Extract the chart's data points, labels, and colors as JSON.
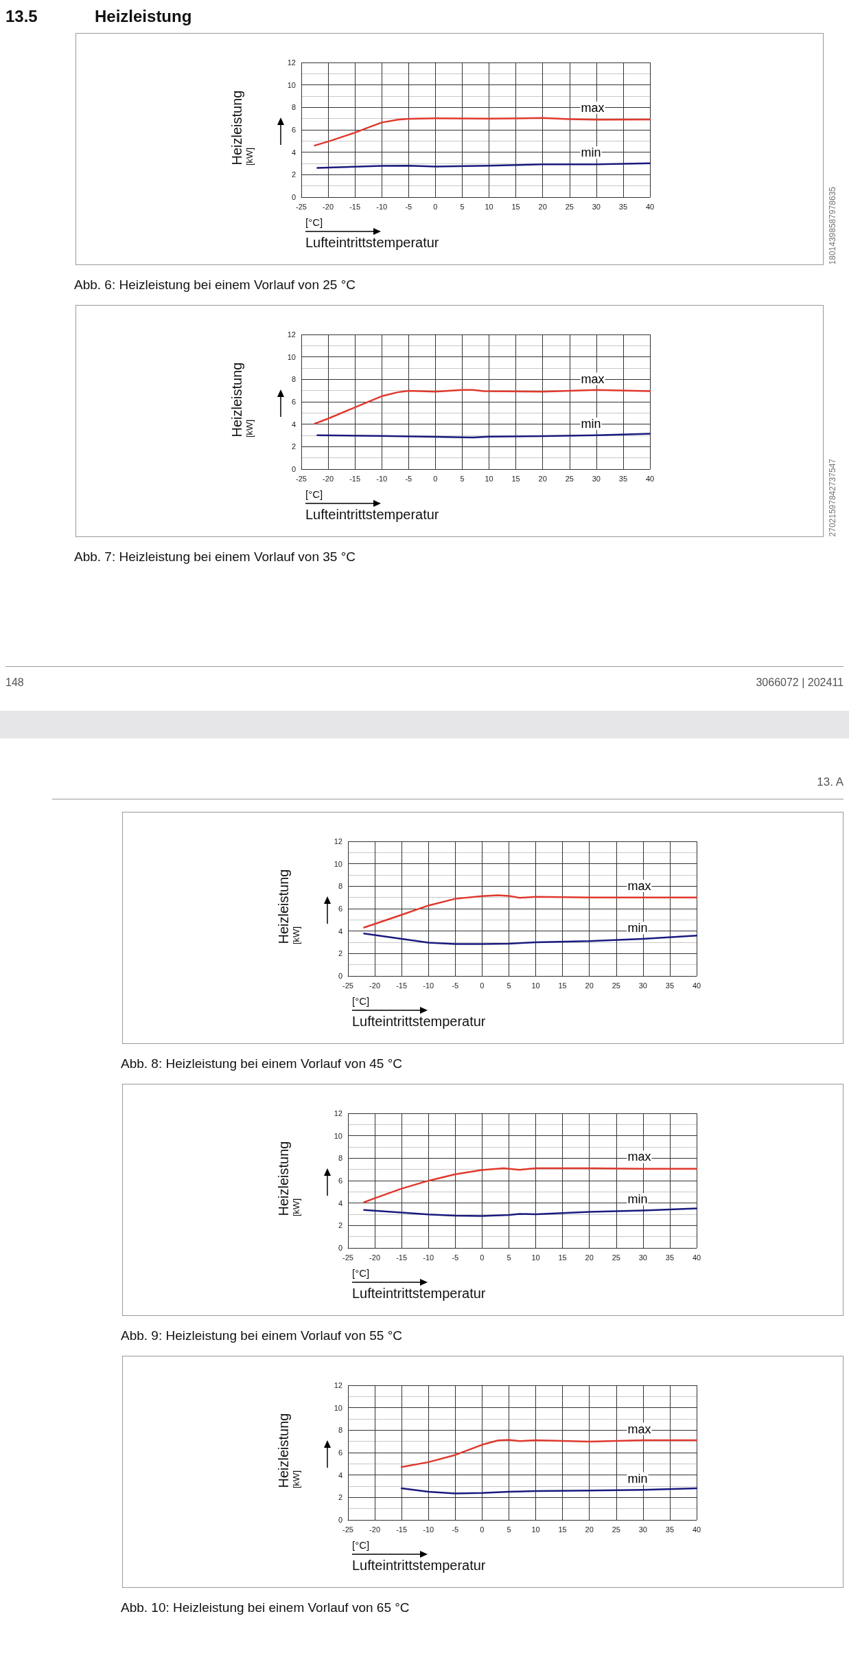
{
  "chart_data": [
    {
      "type": "line",
      "title": "13.5 Heizleistung",
      "xlabel": "[°C]\nLufteintrittstemperatur",
      "ylabel": "Heizleistung\n[kW]",
      "xlim": [
        -25,
        40
      ],
      "xticks": [
        -25,
        -20,
        -15,
        -10,
        -5,
        0,
        5,
        10,
        15,
        20,
        25,
        30,
        35,
        40
      ],
      "ylim": [
        0,
        12
      ],
      "yticks": [
        0,
        2,
        4,
        6,
        8,
        10,
        12
      ],
      "grid": true,
      "legend": false,
      "marker": "none",
      "line_style": "solid",
      "annotations": [
        "Abb. 6: Heizleistung bei einem Vorlauf von 25 °C",
        "18014398587978635"
      ],
      "series": [
        {
          "name": "max",
          "color": "#e0392e",
          "x": [
            -22.5,
            -20,
            -15,
            -12,
            -10,
            -7,
            -5,
            0,
            10,
            20,
            25,
            30,
            40
          ],
          "values": [
            4.6,
            4.95,
            5.75,
            6.3,
            6.65,
            6.9,
            6.98,
            7.02,
            7.0,
            7.05,
            6.95,
            6.9,
            6.92
          ]
        },
        {
          "name": "min",
          "color": "#1a1a7e",
          "x": [
            -22,
            -10,
            -5,
            0,
            10,
            20,
            30,
            40
          ],
          "values": [
            2.6,
            2.78,
            2.8,
            2.73,
            2.8,
            2.92,
            2.92,
            3.02
          ]
        }
      ]
    },
    {
      "type": "line",
      "xlabel": "[°C]\nLufteintrittstemperatur",
      "ylabel": "Heizleistung\n[kW]",
      "xlim": [
        -25,
        40
      ],
      "xticks": [
        -25,
        -20,
        -15,
        -10,
        -5,
        0,
        5,
        10,
        15,
        20,
        25,
        30,
        35,
        40
      ],
      "ylim": [
        0,
        12
      ],
      "yticks": [
        0,
        2,
        4,
        6,
        8,
        10,
        12
      ],
      "grid": true,
      "legend": false,
      "marker": "none",
      "line_style": "solid",
      "annotations": [
        "Abb. 7: Heizleistung bei einem Vorlauf von 35 °C",
        "27021597842737547",
        "148",
        "3066072 | 202411",
        "13. A"
      ],
      "series": [
        {
          "name": "max",
          "color": "#e0392e",
          "x": [
            -22.5,
            -20,
            -15,
            -10,
            -7,
            -5,
            0,
            5,
            7,
            9,
            20,
            25,
            30,
            40
          ],
          "values": [
            4.05,
            4.5,
            5.5,
            6.5,
            6.85,
            6.98,
            6.9,
            7.05,
            7.05,
            6.95,
            6.9,
            6.98,
            7.05,
            6.95
          ]
        },
        {
          "name": "min",
          "color": "#1a1a7e",
          "x": [
            -22,
            -10,
            0,
            5,
            7,
            10,
            20,
            30,
            40
          ],
          "values": [
            3.02,
            2.96,
            2.87,
            2.83,
            2.82,
            2.9,
            2.94,
            3.02,
            3.15
          ]
        }
      ]
    },
    {
      "type": "line",
      "xlabel": "[°C]\nLufteintrittstemperatur",
      "ylabel": "Heizleistung\n[kW]",
      "xlim": [
        -25,
        40
      ],
      "xticks": [
        -25,
        -20,
        -15,
        -10,
        -5,
        0,
        5,
        10,
        15,
        20,
        25,
        30,
        35,
        40
      ],
      "ylim": [
        0,
        12
      ],
      "yticks": [
        0,
        2,
        4,
        6,
        8,
        10,
        12
      ],
      "grid": true,
      "legend": false,
      "marker": "none",
      "line_style": "solid",
      "annotations": [
        "Abb. 8: Heizleistung bei einem Vorlauf von 45 °C"
      ],
      "series": [
        {
          "name": "max",
          "color": "#e0392e",
          "x": [
            -22,
            -20,
            -15,
            -10,
            -5,
            0,
            3,
            5,
            7,
            10,
            20,
            40
          ],
          "values": [
            4.32,
            4.64,
            5.45,
            6.28,
            6.88,
            7.12,
            7.2,
            7.14,
            6.97,
            7.05,
            7.0,
            7.0
          ]
        },
        {
          "name": "min",
          "color": "#1a1a7e",
          "x": [
            -22,
            -15,
            -10,
            -5,
            0,
            5,
            8,
            10,
            20,
            30,
            40
          ],
          "values": [
            3.78,
            3.31,
            2.97,
            2.84,
            2.84,
            2.88,
            2.95,
            3.0,
            3.1,
            3.31,
            3.59
          ]
        }
      ]
    },
    {
      "type": "line",
      "xlabel": "[°C]\nLufteintrittstemperatur",
      "ylabel": "Heizleistung\n[kW]",
      "xlim": [
        -25,
        40
      ],
      "xticks": [
        -25,
        -20,
        -15,
        -10,
        -5,
        0,
        5,
        10,
        15,
        20,
        25,
        30,
        35,
        40
      ],
      "ylim": [
        0,
        12
      ],
      "yticks": [
        0,
        2,
        4,
        6,
        8,
        10,
        12
      ],
      "grid": true,
      "legend": false,
      "marker": "none",
      "line_style": "solid",
      "annotations": [
        "Abb. 9: Heizleistung bei einem Vorlauf von 55 °C"
      ],
      "series": [
        {
          "name": "max",
          "color": "#e0392e",
          "x": [
            -22,
            -20,
            -15,
            -10,
            -5,
            0,
            4,
            5,
            7,
            10,
            20,
            30,
            40
          ],
          "values": [
            4.07,
            4.43,
            5.29,
            5.99,
            6.57,
            6.95,
            7.1,
            7.06,
            6.97,
            7.1,
            7.1,
            7.06,
            7.06
          ]
        },
        {
          "name": "min",
          "color": "#1a1a7e",
          "x": [
            -22,
            -15,
            -10,
            -5,
            0,
            5,
            7,
            10,
            20,
            30,
            40
          ],
          "values": [
            3.39,
            3.16,
            2.99,
            2.88,
            2.84,
            2.94,
            3.03,
            3.0,
            3.22,
            3.33,
            3.52
          ]
        }
      ]
    },
    {
      "type": "line",
      "xlabel": "[°C]\nLufteintrittstemperatur",
      "ylabel": "Heizleistung\n[kW]",
      "xlim": [
        -25,
        40
      ],
      "xticks": [
        -25,
        -20,
        -15,
        -10,
        -5,
        0,
        5,
        10,
        15,
        20,
        25,
        30,
        35,
        40
      ],
      "ylim": [
        0,
        12
      ],
      "yticks": [
        0,
        2,
        4,
        6,
        8,
        10,
        12
      ],
      "grid": true,
      "legend": false,
      "marker": "none",
      "line_style": "solid",
      "annotations": [
        "Abb. 10: Heizleistung bei einem Vorlauf von 65 °C"
      ],
      "series": [
        {
          "name": "max",
          "color": "#e0392e",
          "x": [
            -15,
            -10,
            -5,
            0,
            3,
            5,
            7,
            10,
            20,
            30,
            40
          ],
          "values": [
            4.72,
            5.15,
            5.79,
            6.7,
            7.09,
            7.13,
            7.02,
            7.1,
            6.98,
            7.1,
            7.1
          ]
        },
        {
          "name": "min",
          "color": "#1a1a7e",
          "x": [
            -15,
            -10,
            -5,
            0,
            5,
            10,
            20,
            30,
            40
          ],
          "values": [
            2.81,
            2.51,
            2.36,
            2.4,
            2.51,
            2.57,
            2.62,
            2.68,
            2.81
          ]
        }
      ]
    }
  ]
}
